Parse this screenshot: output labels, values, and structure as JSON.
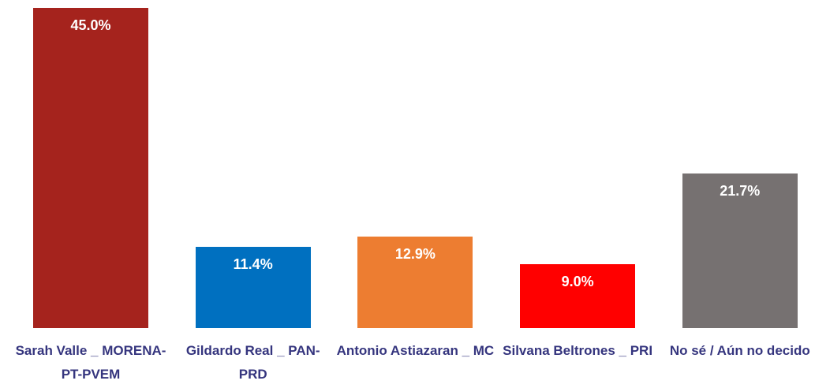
{
  "chart_data": {
    "type": "bar",
    "categories": [
      "Sarah Valle _ MORENA-PT-PVEM",
      "Gildardo Real _ PAN-PRD",
      "Antonio Astiazaran _ MC",
      "Silvana Beltrones _ PRI",
      "No sé / Aún no decido"
    ],
    "values": [
      45.0,
      11.4,
      12.9,
      9.0,
      21.7
    ],
    "value_labels": [
      "45.0%",
      "11.4%",
      "12.9%",
      "9.0%",
      "21.7%"
    ],
    "colors": [
      "#a5231d",
      "#0070c0",
      "#ed7d31",
      "#ff0000",
      "#767171"
    ]
  }
}
